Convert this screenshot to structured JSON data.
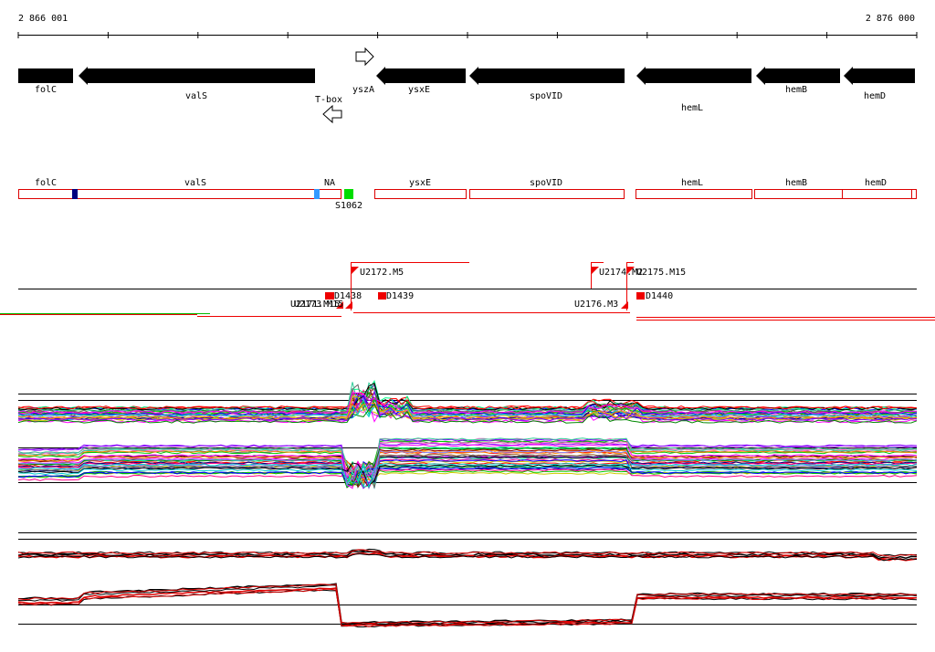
{
  "coords": {
    "start": "2 866 001",
    "end": "2 876 000"
  },
  "genes": [
    {
      "name": "folC",
      "strand": "-"
    },
    {
      "name": "valS",
      "strand": "-"
    },
    {
      "name": "T-box",
      "strand": "-"
    },
    {
      "name": "yszA",
      "strand": "+"
    },
    {
      "name": "ysxE",
      "strand": "-"
    },
    {
      "name": "spoVID",
      "strand": "-"
    },
    {
      "name": "hemL",
      "strand": "-"
    },
    {
      "name": "hemB",
      "strand": "-"
    },
    {
      "name": "hemD",
      "strand": "-"
    }
  ],
  "annotation_track": {
    "segment_labels": [
      "folC",
      "valS",
      "NA",
      "ysxE",
      "spoVID",
      "hemL",
      "hemB",
      "hemD"
    ],
    "marker_label": "S1062"
  },
  "features": {
    "labels": [
      "U2172.M5",
      "U2174.M2",
      "U2175.M15",
      "D1438",
      "D1439",
      "U2171.M15",
      "U2173.M15",
      "U2176.M3",
      "D1440"
    ]
  },
  "colors": {
    "gene": "#000000",
    "segment_outline": "#dd0000",
    "feature": "#ee0000",
    "marker_green": "#00dd00",
    "marker_navy": "#000080",
    "marker_sky": "#3399ff"
  }
}
